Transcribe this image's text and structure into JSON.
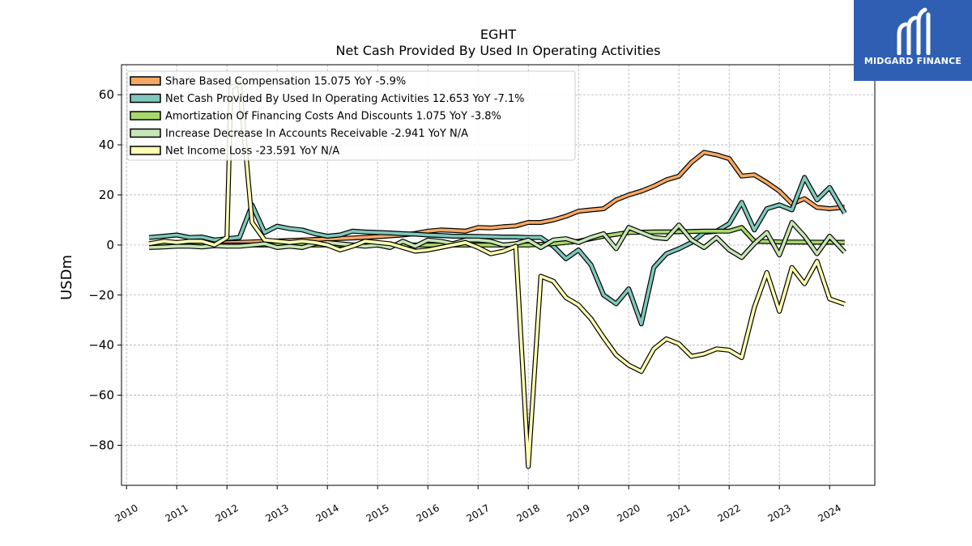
{
  "brand": {
    "logo_text": "MIDGARD FINANCE",
    "logo_color": "#2f5fb3"
  },
  "chart_data": {
    "type": "line",
    "title": "EGHT",
    "subtitle": "Net Cash Provided By Used In Operating Activities",
    "xlabel": "",
    "ylabel": "USDm",
    "xlim": [
      2009.9,
      2024.9
    ],
    "ylim": [
      -96,
      72
    ],
    "x_ticks": [
      "2010",
      "2011",
      "2012",
      "2013",
      "2014",
      "2015",
      "2016",
      "2017",
      "2018",
      "2019",
      "2020",
      "2021",
      "2022",
      "2023",
      "2024"
    ],
    "y_ticks": [
      60,
      40,
      20,
      0,
      -20,
      -40,
      -60,
      -80
    ],
    "y_tick_labels": [
      "60",
      "40",
      "20",
      "0",
      "−20",
      "−40",
      "−60",
      "−80"
    ],
    "grid": true,
    "legend_position": "top-left",
    "series": [
      {
        "name": "Share Based Compensation",
        "legend_label": "Share Based Compensation  15.075 YoY -5.9%",
        "color": "#f5a864",
        "x": [
          2010.45,
          2011.0,
          2011.5,
          2012.0,
          2012.5,
          2013.0,
          2013.5,
          2014.0,
          2014.5,
          2015.0,
          2015.5,
          2015.75,
          2016.0,
          2016.25,
          2016.5,
          2016.75,
          2017.0,
          2017.25,
          2017.5,
          2017.75,
          2018.0,
          2018.25,
          2018.5,
          2018.75,
          2019.0,
          2019.25,
          2019.5,
          2019.75,
          2020.0,
          2020.25,
          2020.5,
          2020.75,
          2021.0,
          2021.25,
          2021.5,
          2021.75,
          2022.0,
          2022.25,
          2022.5,
          2022.75,
          2023.0,
          2023.25,
          2023.5,
          2023.75,
          2024.0,
          2024.3
        ],
        "y": [
          0.3,
          0.5,
          0.7,
          0.9,
          1.2,
          1.6,
          2.0,
          2.4,
          2.8,
          3.3,
          4.0,
          4.6,
          5.5,
          6.0,
          5.8,
          5.5,
          7.0,
          6.8,
          7.3,
          7.6,
          9.0,
          9.0,
          10.0,
          11.5,
          13.5,
          14.0,
          14.5,
          18.0,
          20.0,
          21.5,
          23.5,
          26.0,
          27.5,
          33.0,
          37.0,
          36.0,
          34.5,
          27.5,
          28.0,
          25.0,
          21.5,
          16.5,
          18.5,
          15.0,
          14.5,
          15.1
        ]
      },
      {
        "name": "Net Cash Provided By Used In Operating Activities",
        "legend_label": "Net Cash Provided By Used In Operating Activities  12.653 YoY -7.1%",
        "color": "#7fc8bc",
        "x": [
          2010.45,
          2010.75,
          2011.0,
          2011.25,
          2011.5,
          2011.75,
          2012.0,
          2012.25,
          2012.5,
          2012.75,
          2013.0,
          2013.25,
          2013.5,
          2013.75,
          2014.0,
          2014.25,
          2014.5,
          2014.75,
          2015.0,
          2015.25,
          2015.5,
          2015.75,
          2016.0,
          2016.25,
          2016.5,
          2016.75,
          2017.0,
          2017.25,
          2017.5,
          2017.75,
          2018.0,
          2018.25,
          2018.5,
          2018.75,
          2019.0,
          2019.25,
          2019.5,
          2019.75,
          2020.0,
          2020.25,
          2020.5,
          2020.75,
          2021.0,
          2021.25,
          2021.5,
          2021.75,
          2022.0,
          2022.25,
          2022.5,
          2022.75,
          2023.0,
          2023.25,
          2023.5,
          2023.75,
          2024.0,
          2024.3
        ],
        "y": [
          3.0,
          3.5,
          4.0,
          3.0,
          3.2,
          2.0,
          2.5,
          3.0,
          16.0,
          5.0,
          7.5,
          6.5,
          6.0,
          4.5,
          3.5,
          4.0,
          5.5,
          5.2,
          5.0,
          4.8,
          4.5,
          4.3,
          4.0,
          3.8,
          3.5,
          3.5,
          3.4,
          3.3,
          3.2,
          3.2,
          3.0,
          3.0,
          -0.5,
          -5.5,
          -2.0,
          -8.0,
          -20.0,
          -23.5,
          -17.5,
          -31.5,
          -9.0,
          -3.5,
          -1.5,
          1.0,
          5.0,
          5.5,
          8.5,
          17.0,
          6.0,
          14.5,
          16.0,
          14.0,
          27.0,
          18.0,
          23.0,
          12.7
        ]
      },
      {
        "name": "Amortization Of Financing Costs And Discounts",
        "legend_label": "Amortization Of Financing Costs And Discounts  1.075 YoY -3.8%",
        "color": "#a6d96a",
        "x": [
          2010.45,
          2018.0,
          2018.5,
          2019.0,
          2019.5,
          2020.0,
          2020.5,
          2021.0,
          2021.5,
          2022.0,
          2022.25,
          2022.5,
          2023.0,
          2024.0,
          2024.3
        ],
        "y": [
          0.0,
          0.0,
          0.5,
          1.5,
          3.5,
          5.0,
          5.2,
          5.3,
          5.5,
          5.5,
          7.0,
          1.5,
          1.2,
          1.1,
          1.1
        ]
      },
      {
        "name": "Increase Decrease In Accounts Receivable",
        "legend_label": "Increase Decrease In Accounts Receivable  -2.941 YoY N/A",
        "color": "#c7e6b6",
        "x": [
          2010.45,
          2010.75,
          2011.0,
          2011.25,
          2011.5,
          2011.75,
          2012.0,
          2012.25,
          2012.5,
          2012.75,
          2013.0,
          2013.25,
          2013.5,
          2013.75,
          2014.0,
          2014.25,
          2014.5,
          2014.75,
          2015.0,
          2015.25,
          2015.5,
          2015.75,
          2016.0,
          2016.25,
          2016.5,
          2016.75,
          2017.0,
          2017.25,
          2017.5,
          2017.75,
          2018.0,
          2018.25,
          2018.5,
          2018.75,
          2019.0,
          2019.25,
          2019.5,
          2019.75,
          2020.0,
          2020.25,
          2020.5,
          2020.75,
          2021.0,
          2021.25,
          2021.5,
          2021.75,
          2022.0,
          2022.25,
          2022.5,
          2022.75,
          2023.0,
          2023.25,
          2023.5,
          2023.75,
          2024.0,
          2024.3
        ],
        "y": [
          -1.0,
          -0.8,
          -0.5,
          -0.5,
          -0.8,
          -0.3,
          -0.5,
          -0.5,
          0.0,
          0.5,
          -1.0,
          -0.5,
          -1.0,
          0.5,
          1.0,
          0.5,
          0.0,
          -0.5,
          0.0,
          -1.0,
          1.5,
          -0.5,
          2.0,
          1.5,
          0.5,
          2.0,
          2.0,
          1.5,
          0.0,
          0.5,
          2.0,
          -1.0,
          2.0,
          2.5,
          1.0,
          3.0,
          4.5,
          -1.5,
          7.0,
          5.0,
          3.0,
          2.5,
          8.0,
          2.0,
          -1.0,
          3.0,
          -2.0,
          -5.0,
          0.5,
          5.0,
          -4.0,
          9.0,
          3.5,
          -3.5,
          3.5,
          -2.9
        ]
      },
      {
        "name": "Net Income Loss",
        "legend_label": "Net Income Loss  -23.591 YoY N/A",
        "color": "#ffffb3",
        "x": [
          2010.45,
          2010.75,
          2011.0,
          2011.25,
          2011.5,
          2011.75,
          2012.0,
          2012.08,
          2012.25,
          2012.5,
          2012.75,
          2013.0,
          2013.25,
          2013.5,
          2013.75,
          2014.0,
          2014.25,
          2014.5,
          2014.75,
          2015.0,
          2015.25,
          2015.5,
          2015.75,
          2016.0,
          2016.25,
          2016.5,
          2016.75,
          2017.0,
          2017.25,
          2017.5,
          2017.75,
          2018.0,
          2018.25,
          2018.5,
          2018.75,
          2019.0,
          2019.25,
          2019.5,
          2019.75,
          2020.0,
          2020.25,
          2020.5,
          2020.75,
          2021.0,
          2021.25,
          2021.5,
          2021.75,
          2022.0,
          2022.25,
          2022.5,
          2022.75,
          2023.0,
          2023.25,
          2023.5,
          2023.75,
          2024.0,
          2024.3
        ],
        "y": [
          0.5,
          1.5,
          1.0,
          1.5,
          1.5,
          0.0,
          3.0,
          63.0,
          64.5,
          9.0,
          2.0,
          1.5,
          1.0,
          1.5,
          1.0,
          0.0,
          -2.0,
          -0.5,
          1.5,
          1.0,
          0.5,
          -1.0,
          -2.5,
          -2.0,
          -1.0,
          0.0,
          1.0,
          -1.0,
          -3.5,
          -2.5,
          -0.5,
          -88.5,
          -12.5,
          -14.5,
          -21.0,
          -24.0,
          -29.5,
          -37.0,
          -44.0,
          -48.0,
          -50.5,
          -41.5,
          -37.5,
          -39.5,
          -44.5,
          -43.5,
          -41.5,
          -42.0,
          -45.0,
          -25.0,
          -11.0,
          -26.5,
          -9.0,
          -15.5,
          -6.5,
          -21.5,
          -23.6
        ]
      }
    ]
  }
}
